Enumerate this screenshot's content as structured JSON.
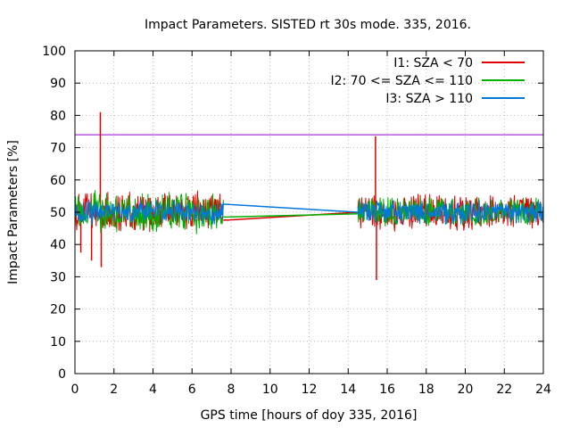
{
  "chart_data": {
    "type": "line",
    "title": "Impact Parameters. SISTED rt 30s mode. 335, 2016.",
    "xlabel": "GPS time [hours of doy 335, 2016]",
    "ylabel": "Impact Parameters [%]",
    "xlim": [
      0,
      24
    ],
    "ylim": [
      0,
      100
    ],
    "x_ticks": [
      0,
      2,
      4,
      6,
      8,
      10,
      12,
      14,
      16,
      18,
      20,
      22,
      24
    ],
    "y_ticks": [
      0,
      10,
      20,
      30,
      40,
      50,
      60,
      70,
      80,
      90,
      100
    ],
    "grid": true,
    "legend_position": "top-right",
    "reference_line": {
      "y": 74,
      "color": "#9400d3"
    },
    "series": [
      {
        "name": "I1: SZA < 70",
        "color": "#e00000",
        "segments": [
          {
            "x_range": [
              0,
              7.6
            ],
            "mean": 50,
            "amplitude": 7
          },
          {
            "x_range": [
              14.5,
              24
            ],
            "mean": 50,
            "amplitude": 6.5
          }
        ],
        "bridge": [
          [
            7.6,
            47.5
          ],
          [
            14.5,
            50
          ]
        ],
        "spikes": [
          [
            0.3,
            37.5
          ],
          [
            0.85,
            35
          ],
          [
            1.3,
            81
          ],
          [
            1.35,
            33
          ],
          [
            15.4,
            73.5
          ],
          [
            15.45,
            29
          ]
        ]
      },
      {
        "name": "I2: 70 <= SZA <= 110",
        "color": "#00b000",
        "segments": [
          {
            "x_range": [
              0,
              7.6
            ],
            "mean": 50,
            "amplitude": 7
          },
          {
            "x_range": [
              14.5,
              24
            ],
            "mean": 50,
            "amplitude": 5
          }
        ],
        "bridge": [
          [
            7.6,
            48.5
          ],
          [
            14.5,
            49.5
          ]
        ],
        "spikes": []
      },
      {
        "name": "I3: SZA > 110",
        "color": "#0077dd",
        "segments": [
          {
            "x_range": [
              0,
              7.6
            ],
            "mean": 50,
            "amplitude": 4
          },
          {
            "x_range": [
              14.5,
              24
            ],
            "mean": 50,
            "amplitude": 4
          }
        ],
        "bridge": [
          [
            7.6,
            52.5
          ],
          [
            14.5,
            50
          ]
        ],
        "spikes": []
      }
    ]
  }
}
